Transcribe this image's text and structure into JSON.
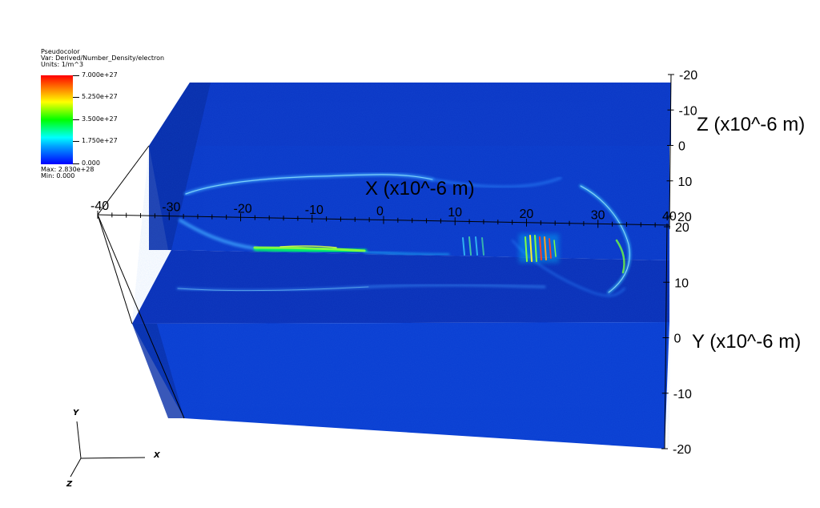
{
  "legend": {
    "plot_type": "Pseudocolor",
    "var": "Var: Derived/Number_Density/electron",
    "units": "Units: 1/m^3",
    "ticks": [
      "7.000e+27",
      "5.250e+27",
      "3.500e+27",
      "1.750e+27",
      "0.000"
    ],
    "max": "Max:  2.830e+28",
    "min": "Min:  0.000"
  },
  "chart_data": {
    "type": "heatmap",
    "title": "",
    "variable": "Derived/Number_Density/electron",
    "units": "1/m^3",
    "colorbar": {
      "min": 0,
      "max": 7e+27,
      "ticks": [
        0,
        1.75e+27,
        3.5e+27,
        5.25e+27,
        7e+27
      ]
    },
    "data_max": 2.83e+28,
    "data_min": 0,
    "x_axis": {
      "label": "X (x10^-6 m)",
      "range": [
        -40,
        40
      ],
      "ticks": [
        "-40",
        "-30",
        "-20",
        "-10",
        "0",
        "10",
        "20",
        "30",
        "40"
      ]
    },
    "y_axis": {
      "label": "Y (x10^-6 m)",
      "range": [
        -20,
        20
      ],
      "ticks": [
        "20",
        "10",
        "0",
        "-10",
        "-20"
      ]
    },
    "z_axis": {
      "label": "Z (x10^-6 m)",
      "range": [
        -20,
        20
      ],
      "ticks": [
        "-20",
        "-10",
        "0",
        "10",
        "20"
      ]
    },
    "colors": {
      "background": "#0a34c8",
      "low": "#0000ff",
      "high": "#ff0000"
    }
  },
  "triad": {
    "x": "X",
    "y": "Y",
    "z": "Z"
  }
}
